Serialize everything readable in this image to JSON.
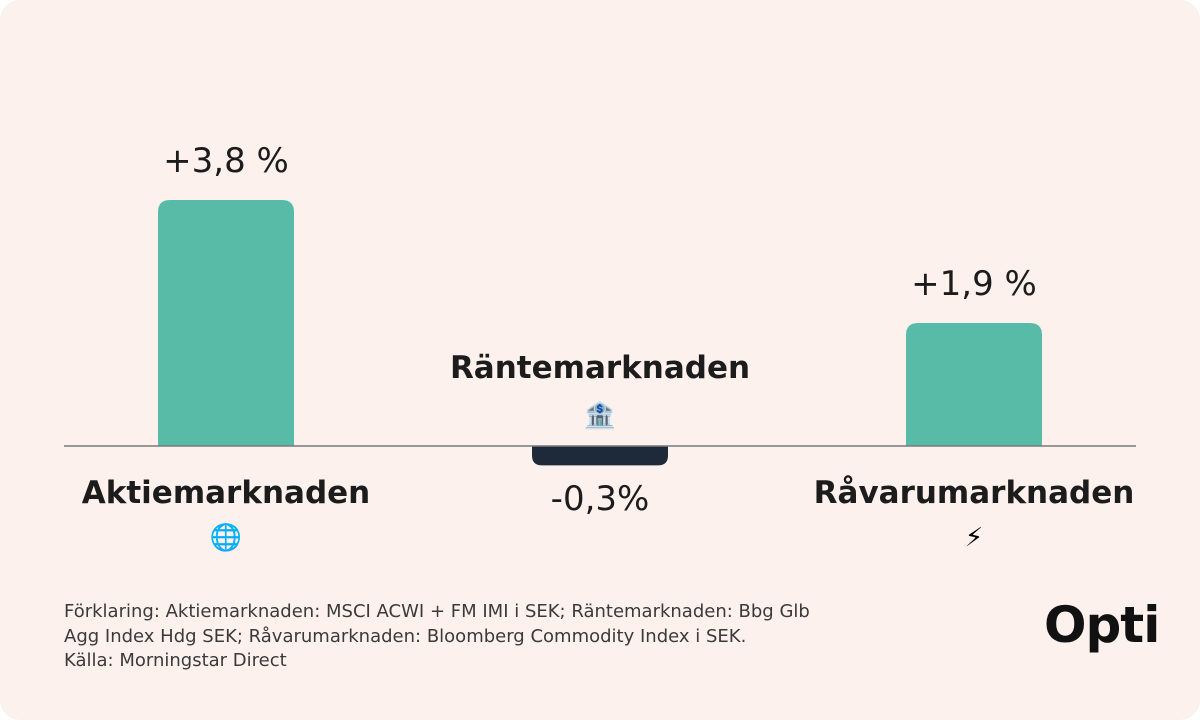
{
  "chart_data": {
    "type": "bar",
    "categories": [
      "Aktiemarknaden",
      "Räntemarknaden",
      "Råvarumarknaden"
    ],
    "values": [
      3.8,
      -0.3,
      1.9
    ],
    "value_labels": [
      "+3,8 %",
      "-0,3%",
      "+1,9 %"
    ],
    "category_icons": [
      "globe-icon",
      "bank-icon",
      "lightning-icon"
    ],
    "colors": {
      "positive": "#57bba8",
      "negative": "#1e2a3a",
      "baseline": "#7a7a7a"
    },
    "ylim": [
      -0.3,
      3.8
    ],
    "grid": false,
    "legend": "none"
  },
  "footnote": {
    "lines": [
      "Förklaring: Aktiemarknaden: MSCI ACWI + FM IMI i SEK; Räntemarknaden: Bbg Glb",
      "Agg Index Hdg SEK; Råvarumarknaden: Bloomberg Commodity Index i SEK.",
      "Källa: Morningstar Direct"
    ]
  },
  "brand": {
    "logo_text": "Opti"
  }
}
